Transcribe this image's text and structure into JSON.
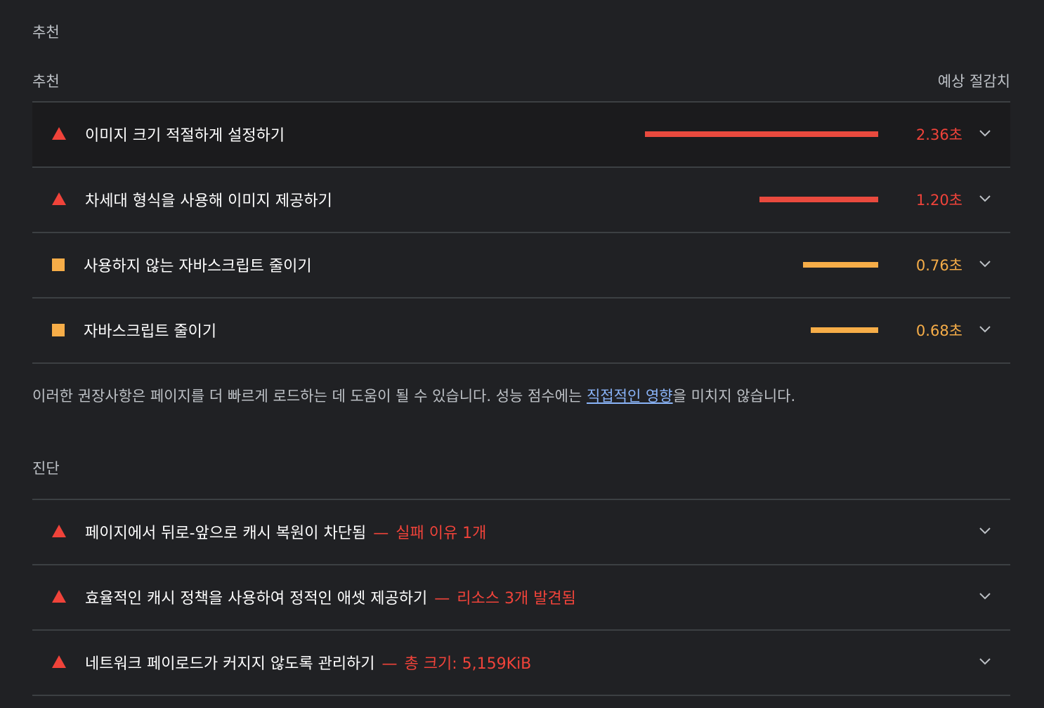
{
  "recommendations": {
    "section_title": "추천",
    "header_left": "추천",
    "header_right": "예상 절감치",
    "items": [
      {
        "title": "이미지 크기 적절하게 설정하기",
        "value": "2.36초",
        "severity": "red",
        "savings_seconds": 2.36
      },
      {
        "title": "차세대 형식을 사용해 이미지 제공하기",
        "value": "1.20초",
        "severity": "red",
        "savings_seconds": 1.2
      },
      {
        "title": "사용하지 않는 자바스크립트 줄이기",
        "value": "0.76초",
        "severity": "orange",
        "savings_seconds": 0.76
      },
      {
        "title": "자바스크립트 줄이기",
        "value": "0.68초",
        "severity": "orange",
        "savings_seconds": 0.68
      }
    ],
    "note_before": "이러한 권장사항은 페이지를 더 빠르게 로드하는 데 도움이 될 수 있습니다. 성능 점수에는 ",
    "note_link": "직접적인 영향",
    "note_after": "을 미치지 않습니다."
  },
  "diagnostics": {
    "section_title": "진단",
    "items": [
      {
        "title": "페이지에서 뒤로-앞으로 캐시 복원이 차단됨",
        "dash": "—",
        "detail": "실패 이유 1개"
      },
      {
        "title": "효율적인 캐시 정책을 사용하여 정적인 애셋 제공하기",
        "dash": "—",
        "detail": "리소스 3개 발견됨"
      },
      {
        "title": "네트워크 페이로드가 커지지 않도록 관리하기",
        "dash": "—",
        "detail": "총 크기: 5,159KiB"
      }
    ]
  },
  "colors": {
    "background": "#202124",
    "fail_red": "#f0433a",
    "average_orange": "#f6ad48",
    "link_blue": "#8ab4f8"
  },
  "icons": {
    "fail": "warning-triangle-icon",
    "average": "square-icon",
    "expand": "chevron-down-icon"
  }
}
